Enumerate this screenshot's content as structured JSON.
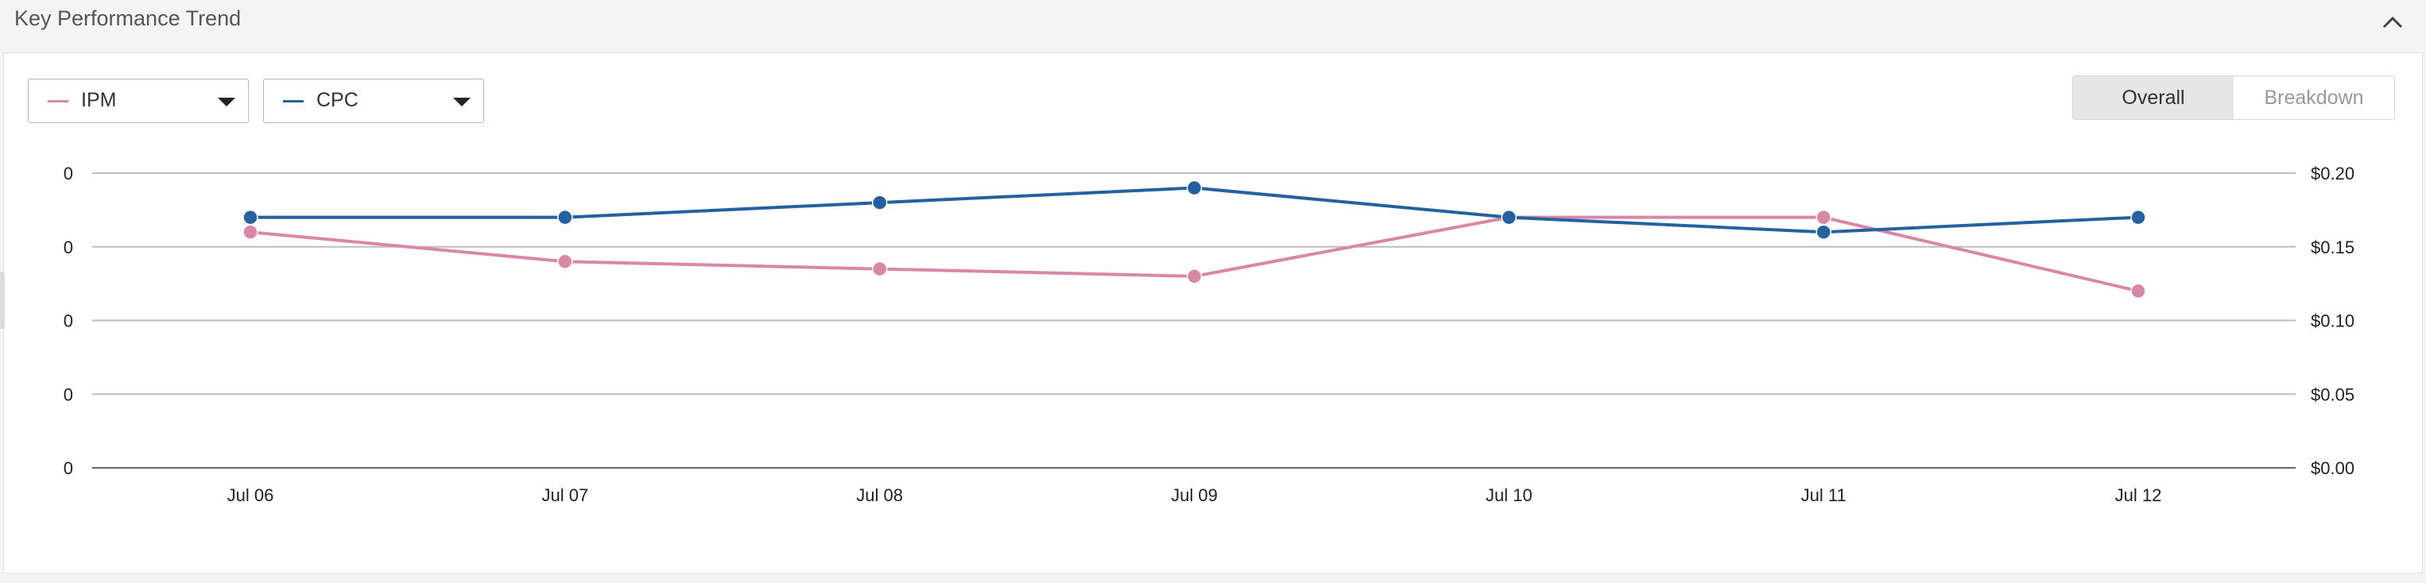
{
  "header": {
    "title": "Key Performance Trend"
  },
  "controls": {
    "metric1": {
      "label": "IPM",
      "color": "#d987a7"
    },
    "metric2": {
      "label": "CPC",
      "color": "#2561a1"
    },
    "toggle": {
      "overall": "Overall",
      "breakdown": "Breakdown",
      "selected": "Overall"
    }
  },
  "chart_data": {
    "type": "line",
    "categories": [
      "Jul 06",
      "Jul 07",
      "Jul 08",
      "Jul 09",
      "Jul 10",
      "Jul 11",
      "Jul 12"
    ],
    "left_axis": {
      "ticks": [
        "0",
        "0",
        "0",
        "0",
        "0"
      ]
    },
    "right_axis": {
      "ticks": [
        "$0.20",
        "$0.15",
        "$0.10",
        "$0.05",
        "$0.00"
      ],
      "ylim": [
        0,
        0.2
      ]
    },
    "grid": true,
    "series": [
      {
        "name": "IPM",
        "color": "#d987a7",
        "axis": "right-scale",
        "values": [
          0.16,
          0.14,
          0.135,
          0.13,
          0.17,
          0.17,
          0.12
        ]
      },
      {
        "name": "CPC",
        "color": "#2561a1",
        "axis": "right",
        "values": [
          0.17,
          0.17,
          0.18,
          0.19,
          0.17,
          0.16,
          0.17
        ]
      }
    ]
  }
}
